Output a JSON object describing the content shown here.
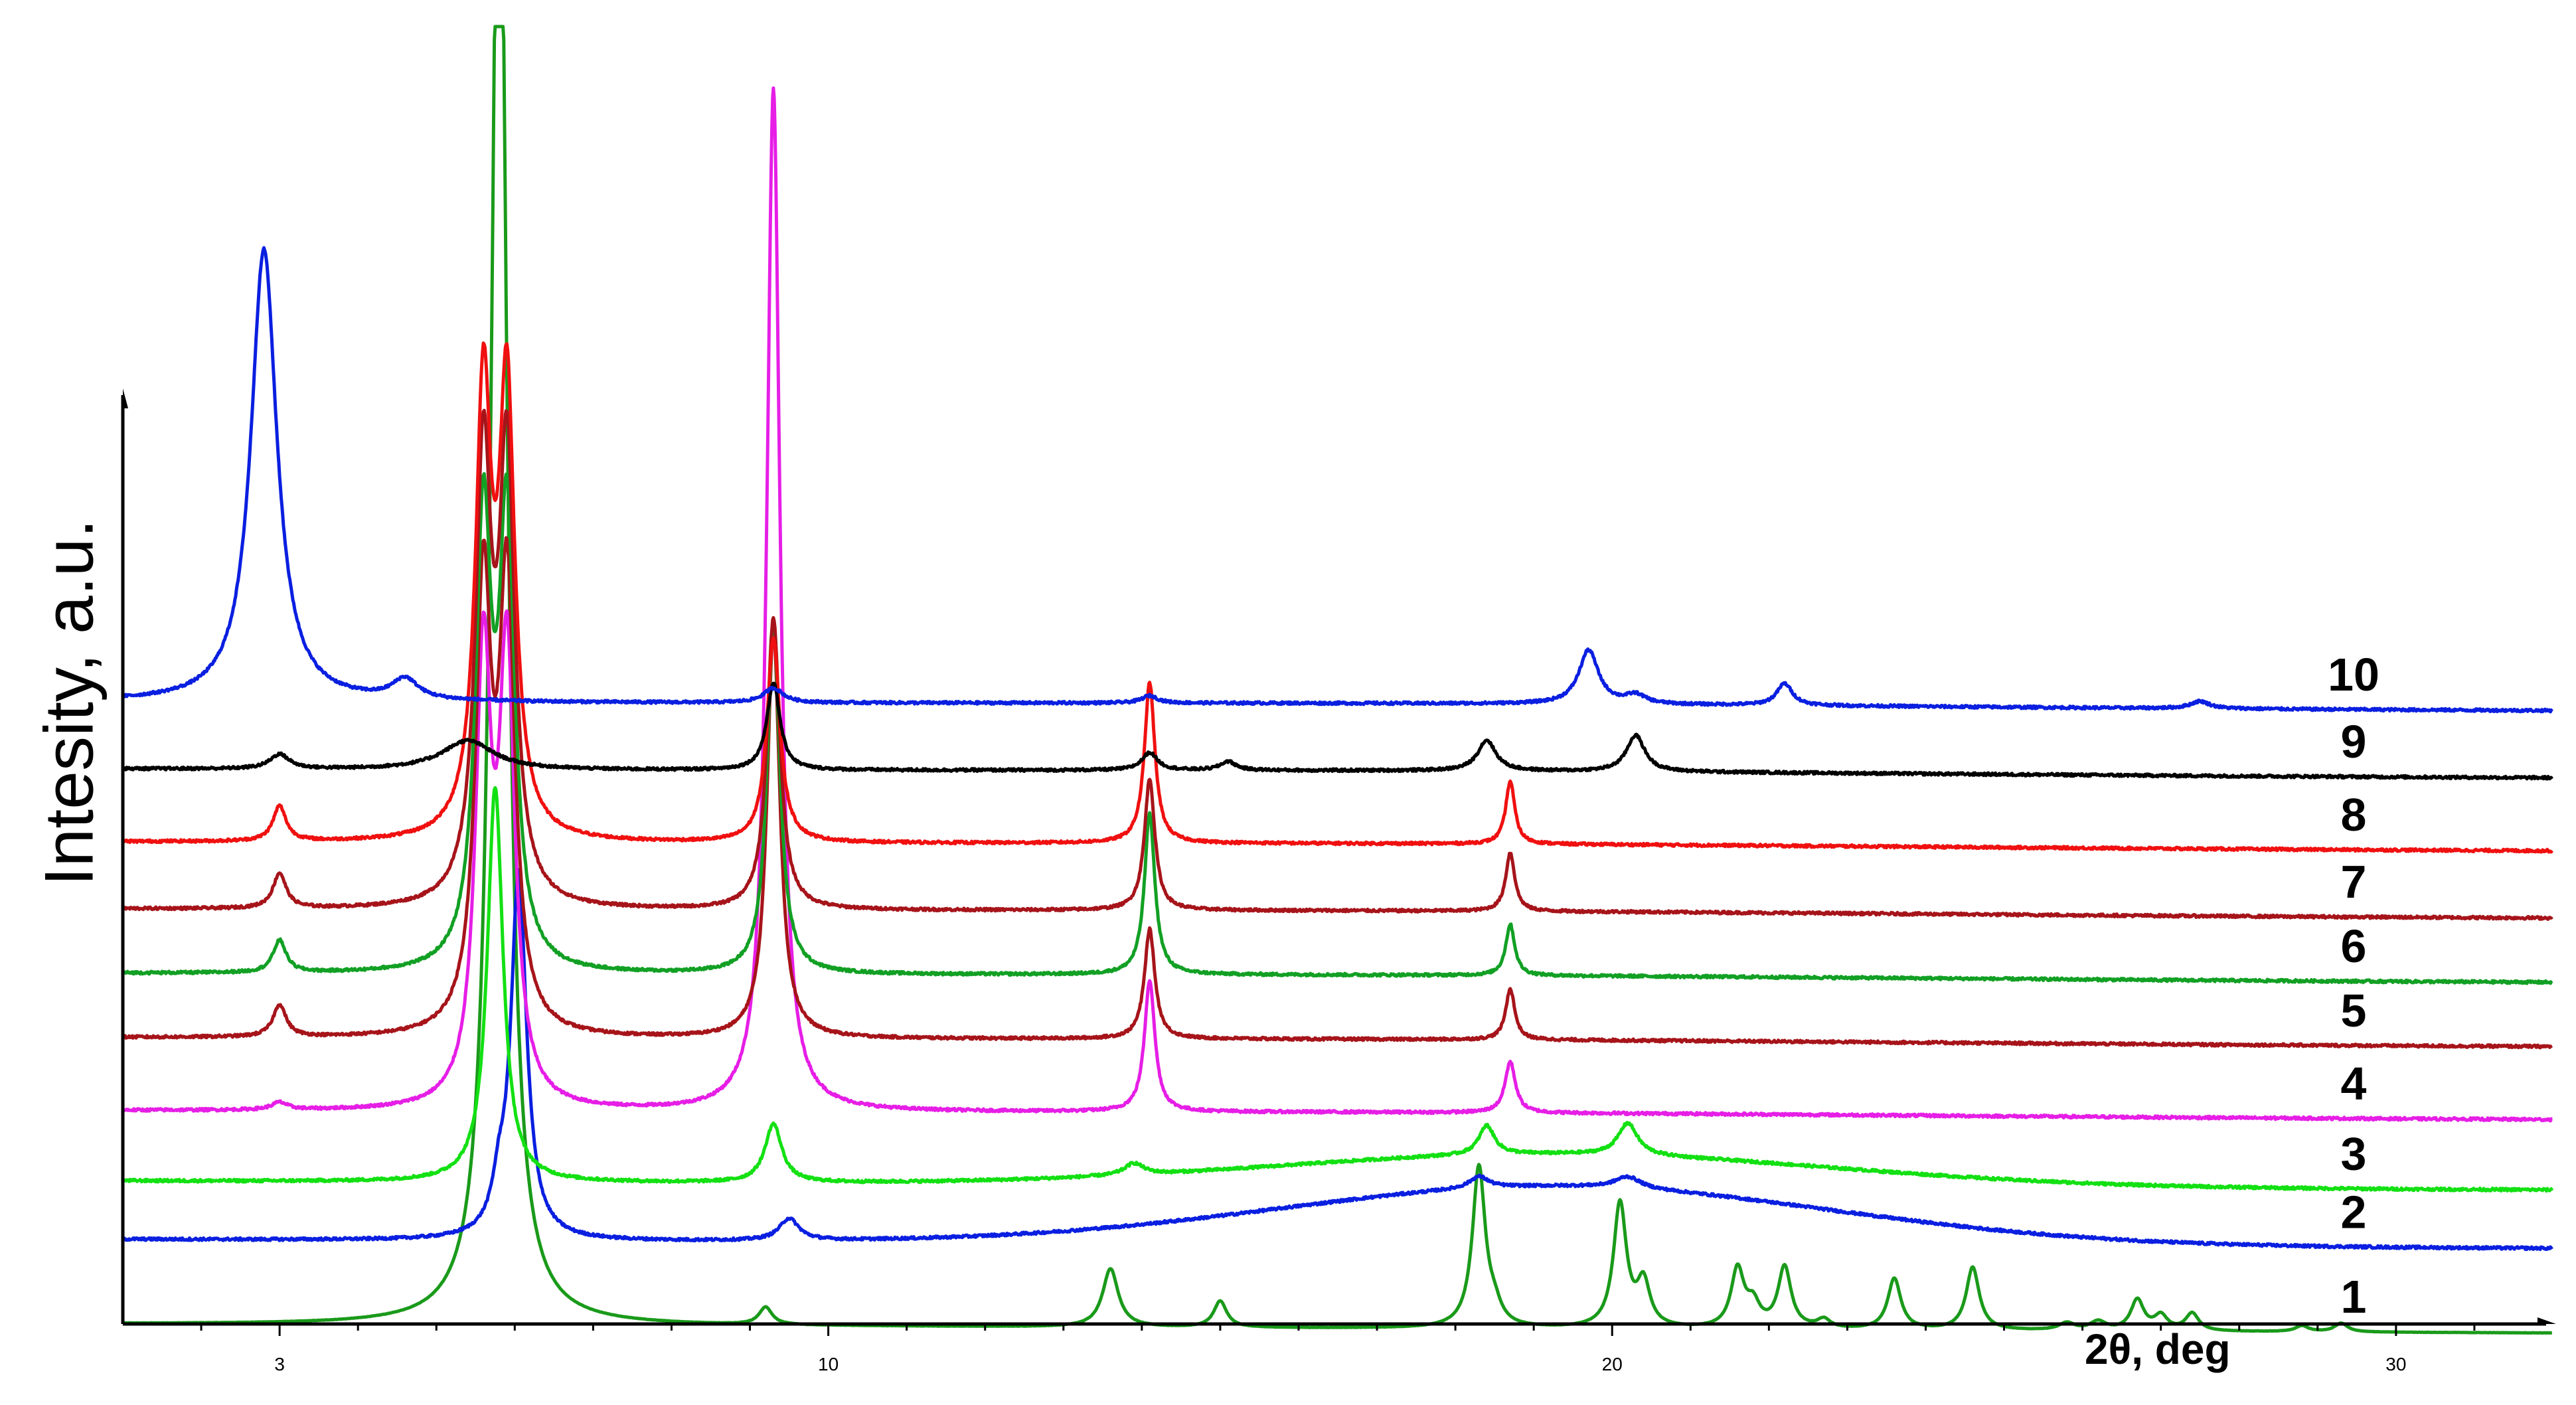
{
  "chart_data": {
    "type": "line",
    "title": "",
    "xlabel": "2θ, deg",
    "ylabel": "Intesity, a.u.",
    "xlim": [
      1.0,
      32.0
    ],
    "x_ticks": [
      3,
      10,
      20,
      30
    ],
    "grid": false,
    "legend": "curve numbers at right end",
    "y_units": "stacked offset, a.u.",
    "series": [
      {
        "name": "1",
        "color": "#1a9a1a",
        "baseline": 0.0,
        "peaks": [
          [
            5.8,
            110,
            0.12
          ],
          [
            9.2,
            1.2,
            0.1
          ],
          [
            13.6,
            4.0,
            0.12
          ],
          [
            15.0,
            1.8,
            0.1
          ],
          [
            18.3,
            11.0,
            0.1
          ],
          [
            18.5,
            1.0,
            0.1
          ],
          [
            20.1,
            8.5,
            0.1
          ],
          [
            20.4,
            3.0,
            0.1
          ],
          [
            21.6,
            4.0,
            0.1
          ],
          [
            21.8,
            1.5,
            0.1
          ],
          [
            22.2,
            4.2,
            0.1
          ],
          [
            22.7,
            0.6,
            0.1
          ],
          [
            23.6,
            3.5,
            0.1
          ],
          [
            24.6,
            4.3,
            0.1
          ],
          [
            25.8,
            0.5,
            0.12
          ],
          [
            26.2,
            0.6,
            0.12
          ],
          [
            26.7,
            2.1,
            0.1
          ],
          [
            27.0,
            1.0,
            0.1
          ],
          [
            27.4,
            1.2,
            0.1
          ],
          [
            28.8,
            0.4,
            0.1
          ],
          [
            29.3,
            0.6,
            0.1
          ]
        ],
        "amorphous": [
          [
            20.0,
            0.0,
            3.0
          ]
        ]
      },
      {
        "name": "2",
        "color": "#0a1fe0",
        "baseline": 5.8,
        "peaks": [
          [
            1.2,
            0.0,
            0.1
          ],
          [
            5.8,
            2.5,
            0.1
          ],
          [
            6.05,
            25.0,
            0.12
          ],
          [
            9.5,
            1.5,
            0.15
          ],
          [
            18.3,
            0.8,
            0.15
          ],
          [
            20.2,
            0.8,
            0.2
          ]
        ],
        "amorphous": [
          [
            19.3,
            4.0,
            3.5
          ]
        ]
      },
      {
        "name": "3",
        "color": "#13e013",
        "baseline": 9.8,
        "peaks": [
          [
            5.75,
            27.0,
            0.12
          ],
          [
            9.3,
            4.0,
            0.13
          ],
          [
            13.9,
            0.8,
            0.15
          ],
          [
            18.4,
            2.0,
            0.12
          ],
          [
            20.2,
            2.2,
            0.15
          ]
        ],
        "amorphous": [
          [
            19.3,
            2.2,
            3.5
          ]
        ]
      },
      {
        "name": "4",
        "color": "#e61ee6",
        "baseline": 14.6,
        "peaks": [
          [
            3.0,
            0.5,
            0.12
          ],
          [
            5.6,
            30.0,
            0.12
          ],
          [
            5.9,
            30.0,
            0.12
          ],
          [
            9.3,
            70.0,
            0.1
          ],
          [
            14.1,
            9.0,
            0.08
          ],
          [
            18.7,
            3.5,
            0.08
          ]
        ],
        "amorphous": [
          [
            18.0,
            0.2,
            6.0
          ]
        ]
      },
      {
        "name": "5",
        "color": "#a6141a",
        "baseline": 19.6,
        "peaks": [
          [
            3.0,
            2.2,
            0.1
          ],
          [
            5.6,
            30.0,
            0.12
          ],
          [
            5.9,
            30.0,
            0.12
          ],
          [
            9.3,
            28.0,
            0.1
          ],
          [
            14.1,
            7.5,
            0.08
          ],
          [
            18.7,
            3.5,
            0.07
          ]
        ],
        "amorphous": [
          [
            18.0,
            0.2,
            6.0
          ]
        ]
      },
      {
        "name": "6",
        "color": "#12a024",
        "baseline": 24.0,
        "peaks": [
          [
            3.0,
            2.2,
            0.1
          ],
          [
            5.6,
            30.0,
            0.12
          ],
          [
            5.9,
            30.0,
            0.12
          ],
          [
            9.3,
            24.0,
            0.1
          ],
          [
            14.1,
            11.0,
            0.08
          ],
          [
            18.7,
            3.5,
            0.07
          ]
        ],
        "amorphous": [
          [
            18.0,
            0.2,
            6.0
          ]
        ]
      },
      {
        "name": "7",
        "color": "#a6141a",
        "baseline": 28.4,
        "peaks": [
          [
            3.0,
            2.4,
            0.1
          ],
          [
            5.6,
            30.0,
            0.12
          ],
          [
            5.9,
            30.0,
            0.12
          ],
          [
            9.3,
            20.0,
            0.1
          ],
          [
            14.1,
            9.0,
            0.08
          ],
          [
            18.7,
            4.0,
            0.07
          ]
        ],
        "amorphous": [
          [
            18.0,
            0.2,
            6.0
          ]
        ]
      },
      {
        "name": "8",
        "color": "#f01010",
        "baseline": 33.0,
        "peaks": [
          [
            3.0,
            2.4,
            0.1
          ],
          [
            5.6,
            30.0,
            0.12
          ],
          [
            5.9,
            30.0,
            0.12
          ],
          [
            9.3,
            14.0,
            0.1
          ],
          [
            14.1,
            11.0,
            0.08
          ],
          [
            18.7,
            4.3,
            0.07
          ]
        ],
        "amorphous": [
          [
            18.0,
            0.2,
            6.0
          ]
        ]
      },
      {
        "name": "9",
        "color": "#000000",
        "baseline": 38.0,
        "peaks": [
          [
            3.0,
            1.0,
            0.15
          ],
          [
            5.4,
            2.0,
            0.4
          ],
          [
            9.3,
            6.0,
            0.1
          ],
          [
            14.1,
            1.2,
            0.12
          ],
          [
            15.1,
            0.6,
            0.12
          ],
          [
            18.4,
            2.1,
            0.14
          ],
          [
            20.3,
            2.5,
            0.14
          ]
        ],
        "amorphous": [
          [
            18.0,
            0.2,
            6.0
          ]
        ]
      },
      {
        "name": "10",
        "color": "#0a1fe0",
        "baseline": 42.6,
        "peaks": [
          [
            2.8,
            31.0,
            0.2
          ],
          [
            4.6,
            1.4,
            0.2
          ],
          [
            9.3,
            1.0,
            0.15
          ],
          [
            14.1,
            0.5,
            0.12
          ],
          [
            19.7,
            3.7,
            0.15
          ],
          [
            20.3,
            0.6,
            0.15
          ],
          [
            22.2,
            1.5,
            0.12
          ],
          [
            27.5,
            0.5,
            0.15
          ]
        ],
        "amorphous": [
          [
            18.0,
            0.2,
            6.0
          ]
        ]
      }
    ]
  }
}
